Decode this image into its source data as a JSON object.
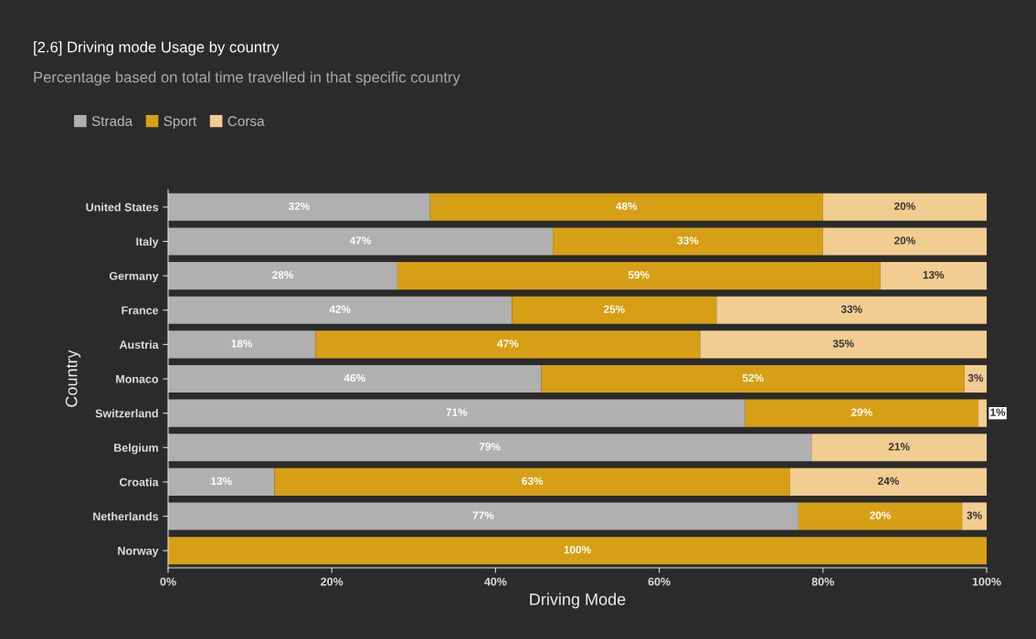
{
  "chart_data": {
    "type": "bar",
    "orientation": "horizontal",
    "stacked": true,
    "title": "[2.6] Driving mode Usage by country",
    "subtitle": "Percentage based on total time travelled in that specific country",
    "xlabel": "Driving Mode",
    "ylabel": "Country",
    "categories": [
      "United States",
      "Italy",
      "Germany",
      "France",
      "Austria",
      "Monaco",
      "Switzerland",
      "Belgium",
      "Croatia",
      "Netherlands",
      "Norway"
    ],
    "series": [
      {
        "name": "Strada",
        "color": "#b0b0b0",
        "values": [
          32,
          47,
          28,
          42,
          18,
          45.6,
          70.5,
          78.6,
          13,
          77,
          null
        ],
        "value_labels": [
          "32%",
          "47%",
          "28%",
          "42%",
          "18%",
          "46%",
          "71%",
          "79%",
          "13%",
          "77%",
          null
        ]
      },
      {
        "name": "Sport",
        "color": "#d79f16",
        "values": [
          48,
          33,
          59,
          25,
          47,
          51.7,
          28.5,
          null,
          63,
          20,
          100
        ],
        "value_labels": [
          "48%",
          "33%",
          "59%",
          "25%",
          "47%",
          "52%",
          "29%",
          null,
          "63%",
          "20%",
          "100%"
        ]
      },
      {
        "name": "Corsa",
        "color": "#f2cd91",
        "values": [
          20,
          20,
          13,
          33,
          35,
          2.7,
          1,
          21.4,
          24,
          3,
          null
        ],
        "value_labels": [
          "20%",
          "20%",
          "13%",
          "33%",
          "35%",
          "3%",
          "1%",
          "21%",
          "24%",
          "3%",
          null
        ]
      }
    ],
    "xlim": [
      0,
      100
    ],
    "xticks": [
      {
        "value": 0,
        "label": "0%"
      },
      {
        "value": 20,
        "label": "20%"
      },
      {
        "value": 40,
        "label": "40%"
      },
      {
        "value": 60,
        "label": "60%"
      },
      {
        "value": 80,
        "label": "80%"
      },
      {
        "value": 100,
        "label": "100%"
      }
    ],
    "legend": "top left",
    "grid": false
  }
}
